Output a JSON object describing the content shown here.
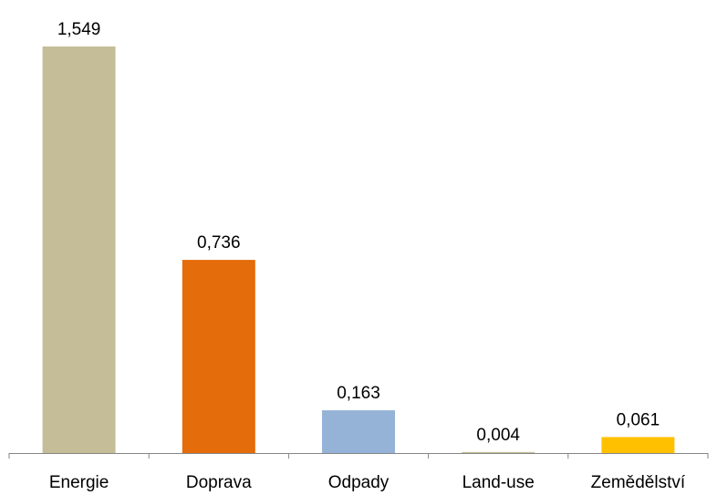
{
  "chart_data": {
    "type": "bar",
    "title": "",
    "xlabel": "",
    "ylabel": "",
    "categories": [
      "Energie",
      "Doprava",
      "Odpady",
      "Land-use",
      "Zemědělství"
    ],
    "values": [
      1.549,
      0.736,
      0.163,
      0.004,
      0.061
    ],
    "value_labels": [
      "1,549",
      "0,736",
      "0,163",
      "0,004",
      "0,061"
    ],
    "colors": [
      "#C4BD97",
      "#E46C0A",
      "#95B3D7",
      "#C4BD97",
      "#FFC000"
    ],
    "ylim": [
      0,
      1.549
    ],
    "grid": false,
    "legend": "none",
    "y_axis_visible": false
  }
}
